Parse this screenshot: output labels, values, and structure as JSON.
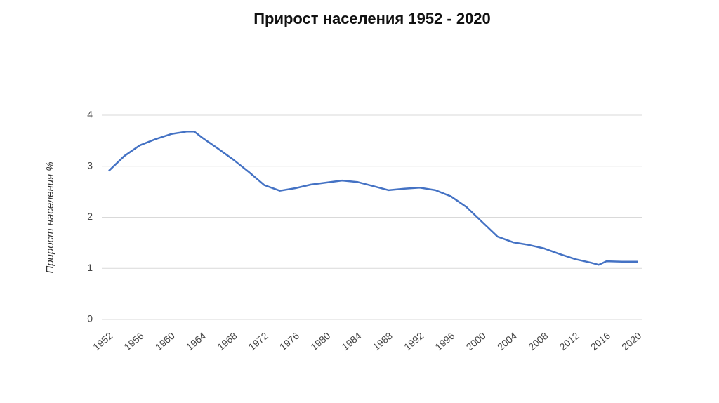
{
  "chart_data": {
    "type": "line",
    "title": "Прирост населения 1952 - 2020",
    "y_label": "Прирост населения %",
    "x": [
      1952,
      1954,
      1956,
      1958,
      1960,
      1962,
      1963,
      1964,
      1966,
      1968,
      1970,
      1972,
      1974,
      1976,
      1978,
      1980,
      1982,
      1984,
      1986,
      1988,
      1990,
      1992,
      1994,
      1996,
      1998,
      2000,
      2002,
      2004,
      2006,
      2008,
      2010,
      2012,
      2014,
      2015,
      2016,
      2018,
      2020
    ],
    "series": [
      {
        "name": "Прирост населения %",
        "color": "#4472c4",
        "values": [
          2.91,
          3.2,
          3.41,
          3.53,
          3.63,
          3.68,
          3.68,
          3.56,
          3.35,
          3.13,
          2.89,
          2.63,
          2.52,
          2.57,
          2.64,
          2.68,
          2.72,
          2.69,
          2.61,
          2.53,
          2.56,
          2.58,
          2.53,
          2.41,
          2.2,
          1.91,
          1.62,
          1.51,
          1.46,
          1.39,
          1.28,
          1.18,
          1.11,
          1.07,
          1.14,
          1.13,
          1.13
        ]
      }
    ],
    "xlim": [
      1952,
      2020
    ],
    "xticks": [
      1952,
      1956,
      1960,
      1964,
      1968,
      1972,
      1976,
      1980,
      1984,
      1988,
      1992,
      1996,
      2000,
      2004,
      2008,
      2012,
      2016,
      2020
    ],
    "ylim": [
      0,
      4
    ],
    "yticks": [
      0,
      1,
      2,
      3,
      4
    ],
    "grid": true
  }
}
